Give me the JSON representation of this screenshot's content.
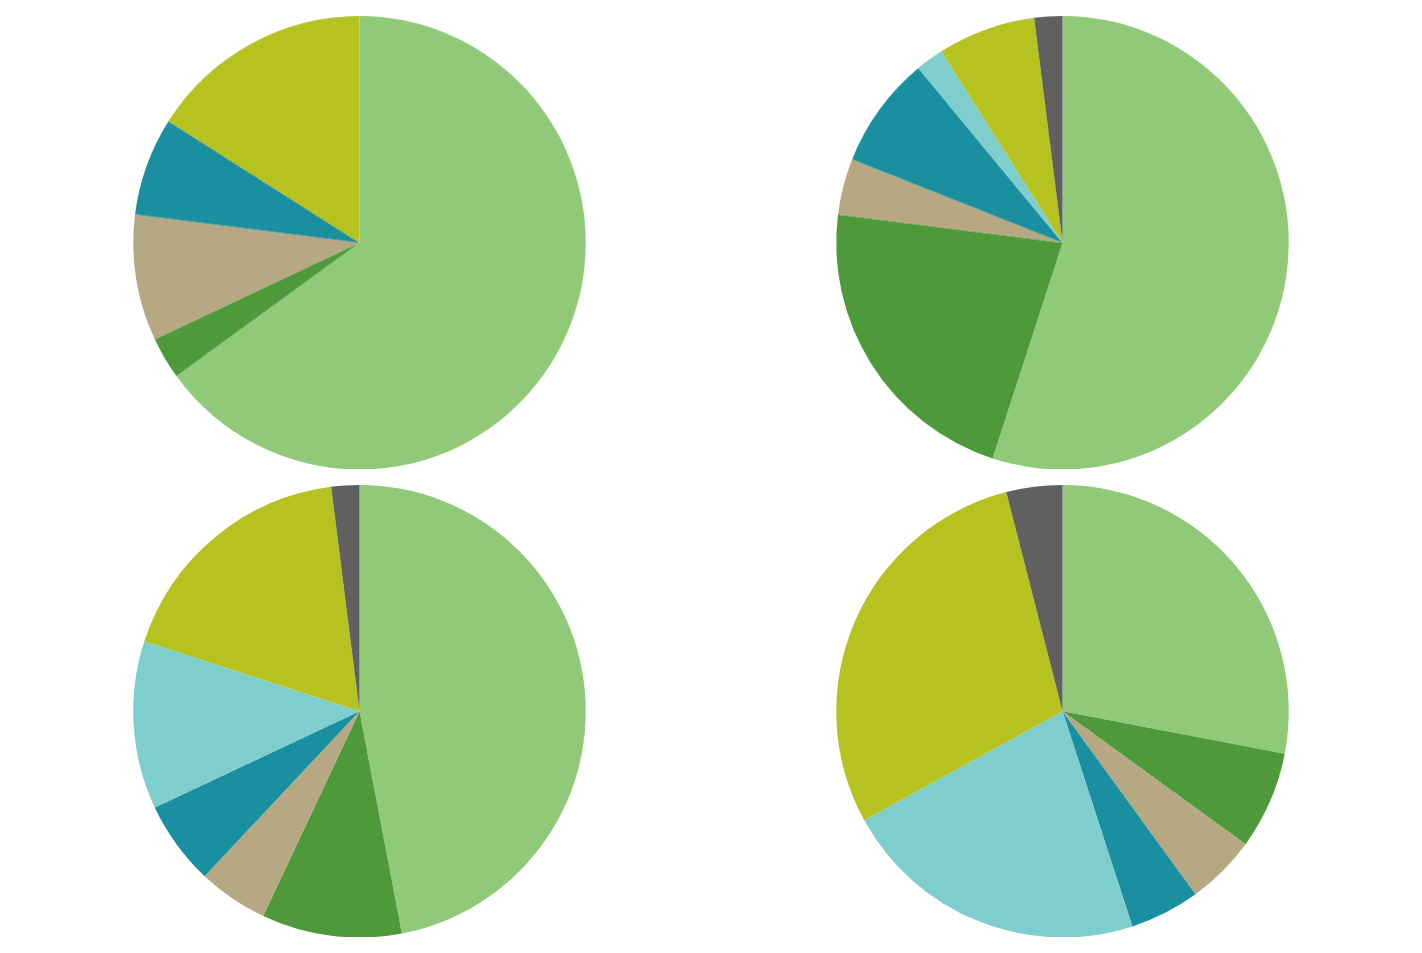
{
  "chart_data": [
    {
      "type": "pie",
      "values": [
        65,
        3,
        9,
        7,
        0,
        16,
        0
      ],
      "colors": [
        "#90c978",
        "#4e9a3a",
        "#b5a882",
        "#1a8fa0",
        "#7ecece",
        "#b5c220",
        "#606060"
      ]
    },
    {
      "type": "pie",
      "values": [
        55,
        22,
        4,
        8,
        2,
        7,
        2
      ],
      "colors": [
        "#90c978",
        "#4e9a3a",
        "#b5a882",
        "#1a8fa0",
        "#7ecece",
        "#b5c220",
        "#606060"
      ]
    },
    {
      "type": "pie",
      "values": [
        47,
        10,
        5,
        6,
        12,
        18,
        2
      ],
      "colors": [
        "#90c978",
        "#4e9a3a",
        "#b5a882",
        "#1a8fa0",
        "#7ecece",
        "#b5c220",
        "#606060"
      ]
    },
    {
      "type": "pie",
      "values": [
        28,
        7,
        5,
        5,
        22,
        29,
        4
      ],
      "colors": [
        "#90c978",
        "#4e9a3a",
        "#b5a882",
        "#1a8fa0",
        "#7ecece",
        "#b5c220",
        "#606060"
      ]
    }
  ]
}
